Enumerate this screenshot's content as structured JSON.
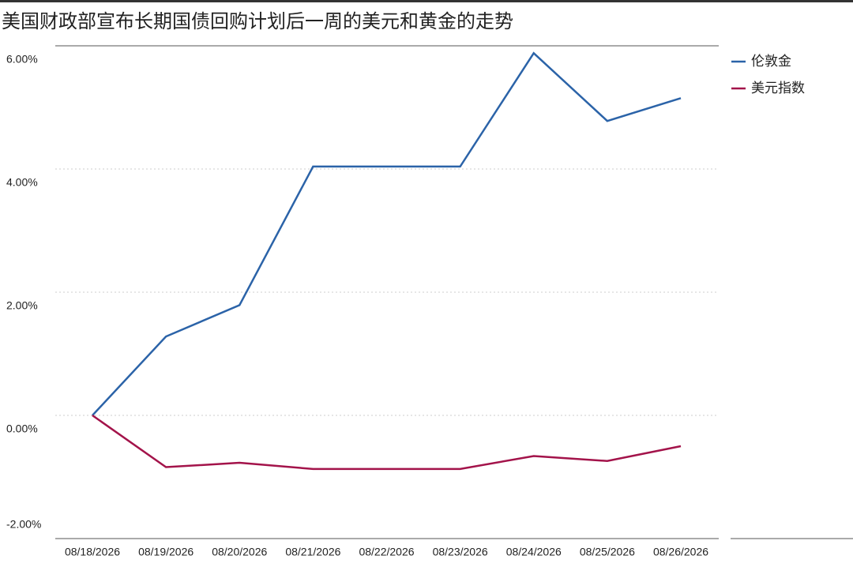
{
  "chart_data": {
    "type": "line",
    "title": "美国财政部宣布长期国债回购计划后一周的美元和黄金的走势",
    "categories": [
      "08/18/2026",
      "08/19/2026",
      "08/20/2026",
      "08/21/2026",
      "08/22/2026",
      "08/23/2026",
      "08/24/2026",
      "08/25/2026",
      "08/26/2026"
    ],
    "series": [
      {
        "name": "伦敦金",
        "color": "#2b63a8",
        "values": [
          0,
          1.28,
          1.79,
          4.04,
          4.04,
          4.04,
          5.88,
          4.78,
          5.15
        ]
      },
      {
        "name": "美元指数",
        "color": "#a3134a",
        "values": [
          0,
          -0.84,
          -0.77,
          -0.87,
          -0.87,
          -0.87,
          -0.66,
          -0.74,
          -0.5
        ]
      }
    ],
    "ylim": [
      -2,
      6
    ],
    "yticks": [
      {
        "value": 6,
        "label": "6.00%"
      },
      {
        "value": 4,
        "label": "4.00%"
      },
      {
        "value": 2,
        "label": "2.00%"
      },
      {
        "value": 0,
        "label": "0.00%"
      },
      {
        "value": -2,
        "label": "-2.00%"
      }
    ],
    "grid": true,
    "legend": "right"
  }
}
